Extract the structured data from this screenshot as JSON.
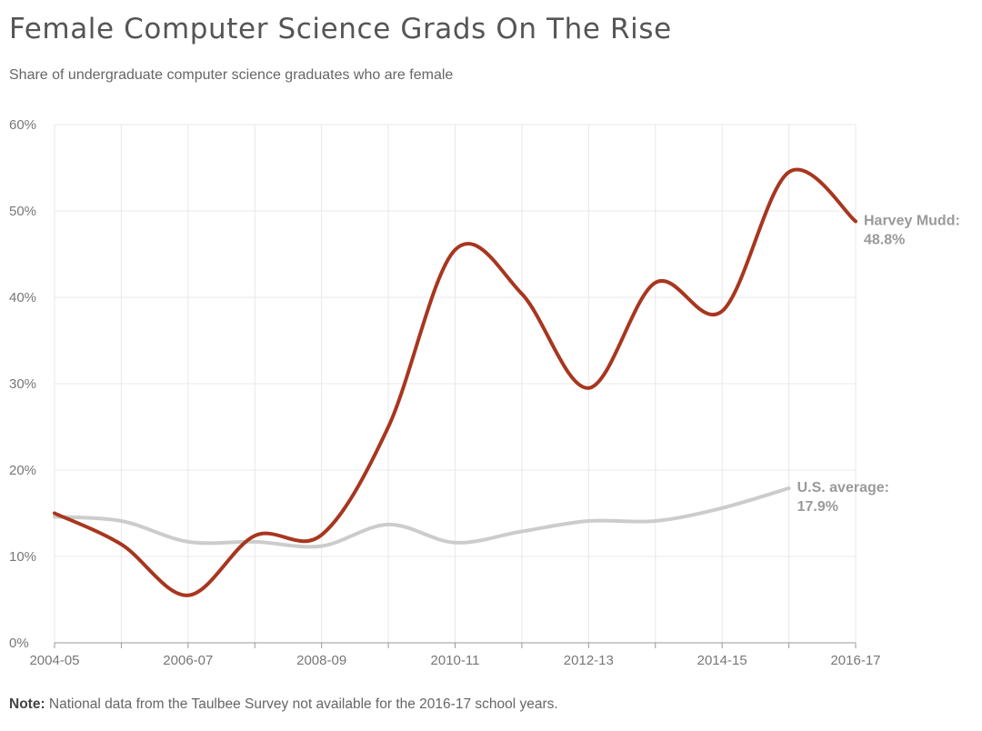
{
  "header": {
    "title": "Female Computer Science Grads On The Rise",
    "subtitle": "Share of undergraduate computer science graduates who are female"
  },
  "footer": {
    "note_label": "Note:",
    "note_text": " National data from the Taulbee Survey not available for the 2016-17 school years."
  },
  "colors": {
    "harvey_mudd": "#a8361f",
    "us_average": "#cccccc",
    "grid": "#e8e8e8",
    "axis": "#999999"
  },
  "chart_data": {
    "type": "line",
    "title": "Female Computer Science Grads On The Rise",
    "subtitle": "Share of undergraduate computer science graduates who are female",
    "xlabel": "",
    "ylabel": "",
    "ylim": [
      0,
      60
    ],
    "y_ticks": [
      0,
      10,
      20,
      30,
      40,
      50,
      60
    ],
    "y_tick_labels": [
      "0%",
      "10%",
      "20%",
      "30%",
      "40%",
      "50%",
      "60%"
    ],
    "categories": [
      "2004-05",
      "2005-06",
      "2006-07",
      "2007-08",
      "2008-09",
      "2009-10",
      "2010-11",
      "2011-12",
      "2012-13",
      "2013-14",
      "2014-15",
      "2015-16",
      "2016-17"
    ],
    "x_tick_labels": [
      "2004-05",
      "",
      "2006-07",
      "",
      "2008-09",
      "",
      "2010-11",
      "",
      "2012-13",
      "",
      "2014-15",
      "",
      "2016-17"
    ],
    "grid": true,
    "series": [
      {
        "name": "Harvey Mudd",
        "label_line1": "Harvey Mudd:",
        "label_line2": "48.8%",
        "color": "#a8361f",
        "values": [
          15.0,
          11.4,
          5.5,
          12.4,
          12.5,
          25.0,
          45.5,
          40.4,
          29.5,
          41.7,
          38.4,
          54.5,
          48.8
        ]
      },
      {
        "name": "U.S. average",
        "label_line1": "U.S. average:",
        "label_line2": "17.9%",
        "color": "#cccccc",
        "values": [
          14.6,
          14.1,
          11.7,
          11.7,
          11.2,
          13.7,
          11.6,
          12.9,
          14.1,
          14.1,
          15.6,
          17.9,
          null
        ]
      }
    ]
  }
}
